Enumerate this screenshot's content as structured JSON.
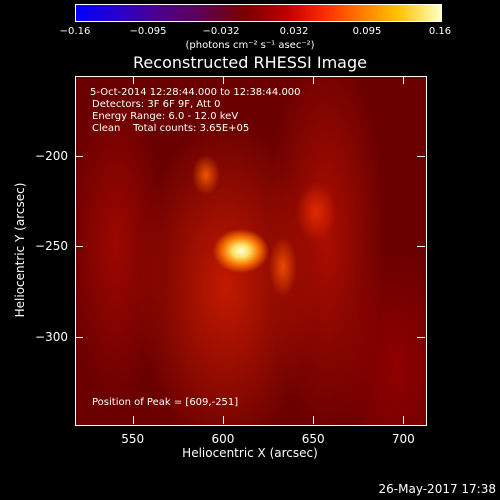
{
  "colorbar": {
    "ticks": [
      "-0.16",
      "-0.095",
      "-0.032",
      "0.032",
      "0.095",
      "0.16"
    ],
    "unit": "(photons cm⁻² s⁻¹ asec⁻²)"
  },
  "title": "Reconstructed RHESSI Image",
  "info": {
    "time": "5-Oct-2014 12:28:44.000 to 12:38:44.000",
    "detectors": "Detectors: 3F 6F 9F, Att 0",
    "energy": "Energy Range: 6.0 - 12.0 keV",
    "clean": "Clean    Total counts: 3.65E+05",
    "peak": "Position of Peak = [609,-251]"
  },
  "datestamp": "26-May-2017 17:38",
  "chart_data": {
    "type": "heatmap",
    "title": "Reconstructed RHESSI Image",
    "xlabel": "Heliocentric X (arcsec)",
    "ylabel": "Heliocentric Y (arcsec)",
    "xlim": [
      518,
      712
    ],
    "ylim": [
      -348,
      -156
    ],
    "xticks": [
      550,
      600,
      650,
      700
    ],
    "yticks": [
      -200,
      -250,
      -300
    ],
    "xtick_labels": [
      "550",
      "600",
      "650",
      "700"
    ],
    "ytick_labels": [
      "-200",
      "-250",
      "-300"
    ],
    "colorbar_range": [
      -0.16,
      0.16
    ],
    "colormap": "hot",
    "peak": [
      609,
      -251
    ],
    "sources": [
      {
        "x": 609,
        "y": -251,
        "intensity": 0.16
      },
      {
        "x": 632,
        "y": -260,
        "intensity": 0.08
      },
      {
        "x": 590,
        "y": -207,
        "intensity": 0.09
      },
      {
        "x": 650,
        "y": -232,
        "intensity": 0.07
      }
    ]
  }
}
